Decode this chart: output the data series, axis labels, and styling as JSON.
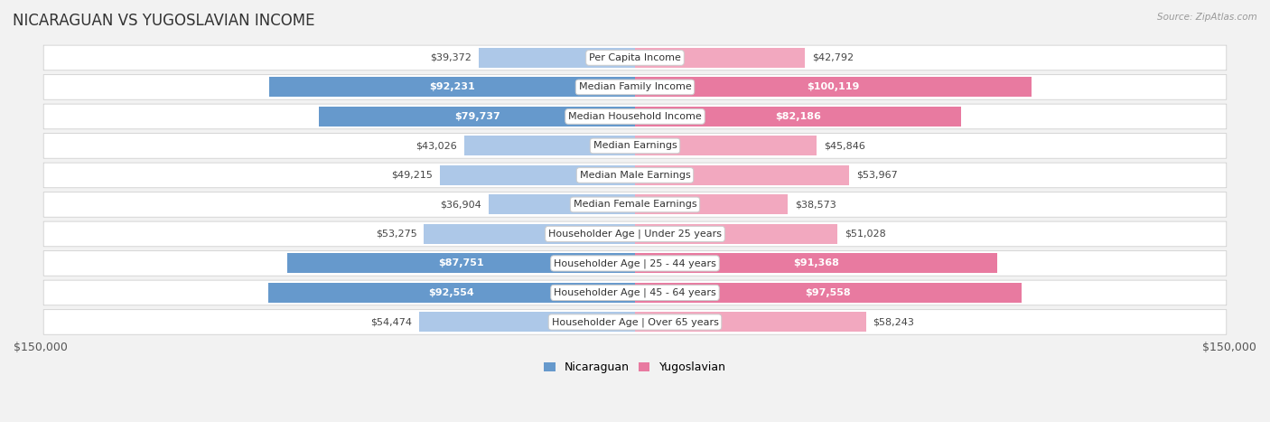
{
  "title": "NICARAGUAN VS YUGOSLAVIAN INCOME",
  "source": "Source: ZipAtlas.com",
  "categories": [
    "Per Capita Income",
    "Median Family Income",
    "Median Household Income",
    "Median Earnings",
    "Median Male Earnings",
    "Median Female Earnings",
    "Householder Age | Under 25 years",
    "Householder Age | 25 - 44 years",
    "Householder Age | 45 - 64 years",
    "Householder Age | Over 65 years"
  ],
  "nicaraguan_values": [
    39372,
    92231,
    79737,
    43026,
    49215,
    36904,
    53275,
    87751,
    92554,
    54474
  ],
  "yugoslavian_values": [
    42792,
    100119,
    82186,
    45846,
    53967,
    38573,
    51028,
    91368,
    97558,
    58243
  ],
  "max_value": 150000,
  "nic_light": "#adc8e8",
  "nic_dark": "#6699cc",
  "yug_light": "#f2a8bf",
  "yug_dark": "#e87aa0",
  "background_color": "#f2f2f2",
  "row_bg": "#ffffff",
  "row_border": "#d0d0d0",
  "title_fontsize": 12,
  "label_fontsize": 8,
  "value_fontsize": 8,
  "legend_fontsize": 9,
  "nic_threshold": 60000,
  "yug_threshold": 60000
}
